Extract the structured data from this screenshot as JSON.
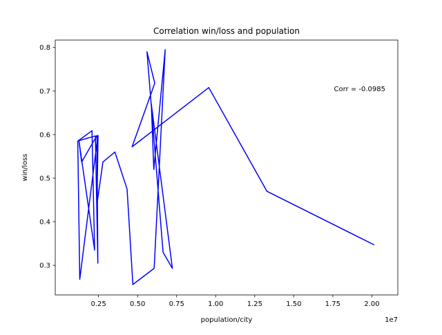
{
  "chart_data": {
    "type": "line",
    "title": "Correlation win/loss and population",
    "xlabel": "population/city",
    "ylabel": "win/loss",
    "x_offset_text": "1e7",
    "x_scale": 10000000,
    "xlim": [
      -0.027,
      2.166
    ],
    "ylim": [
      0.232,
      0.817
    ],
    "x_ticks": [
      0.25,
      0.5,
      0.75,
      1.0,
      1.25,
      1.5,
      1.75,
      2.0
    ],
    "x_tick_labels": [
      "0.25",
      "0.50",
      "0.75",
      "1.00",
      "1.25",
      "1.50",
      "1.75",
      "2.00"
    ],
    "y_ticks": [
      0.3,
      0.4,
      0.5,
      0.6,
      0.7,
      0.8
    ],
    "y_tick_labels": [
      "0.3",
      "0.4",
      "0.5",
      "0.6",
      "0.7",
      "0.8"
    ],
    "grid": false,
    "line_color": "#0000ff",
    "annotation": {
      "text": "Corr = -0.0985",
      "color": "#ff0000",
      "position": "upper-right"
    },
    "series": [
      {
        "x": [
          2.015,
          1.328,
          0.956,
          0.465,
          0.61,
          0.56,
          0.663,
          0.723,
          0.588,
          0.604,
          0.677,
          0.606,
          0.47,
          0.433,
          0.355,
          0.278,
          0.24,
          0.247,
          0.237,
          0.13,
          0.117,
          0.208,
          0.225,
          0.125,
          0.142,
          0.24,
          0.246,
          0.23,
          0.115
        ],
        "y": [
          0.347,
          0.47,
          0.708,
          0.572,
          0.718,
          0.79,
          0.33,
          0.293,
          0.67,
          0.52,
          0.795,
          0.293,
          0.256,
          0.475,
          0.56,
          0.537,
          0.44,
          0.598,
          0.573,
          0.268,
          0.585,
          0.609,
          0.335,
          0.585,
          0.537,
          0.598,
          0.305,
          0.597,
          0.585
        ]
      }
    ]
  }
}
